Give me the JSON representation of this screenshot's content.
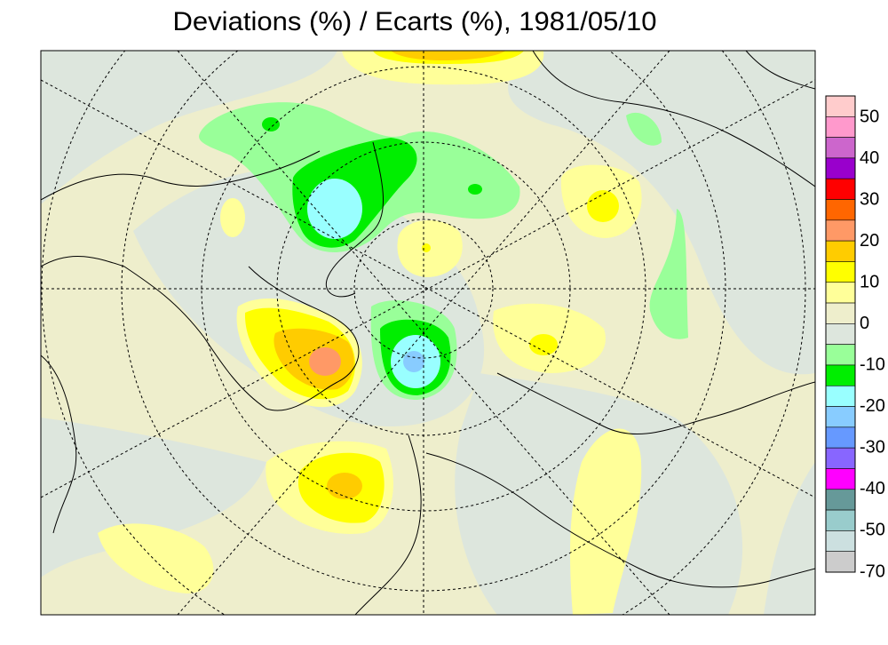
{
  "title": "Deviations (%) / Ecarts (%), 1981/05/10",
  "legend": {
    "labels": [
      50,
      40,
      30,
      20,
      10,
      0,
      -10,
      -20,
      -30,
      -40,
      -50,
      -70
    ],
    "colors": [
      "#ffcccc",
      "#ff99cc",
      "#cc66cc",
      "#9900cc",
      "#ff0000",
      "#ff6600",
      "#ff9966",
      "#ffcc00",
      "#ffff00",
      "#ffff99",
      "#eeeecc",
      "#dde6dd",
      "#99ff99",
      "#00ee00",
      "#99ffff",
      "#88ccff",
      "#6699ff",
      "#8866ff",
      "#ff00ff",
      "#669999",
      "#99cccc",
      "#cce0e0",
      "#cccccc"
    ]
  }
}
